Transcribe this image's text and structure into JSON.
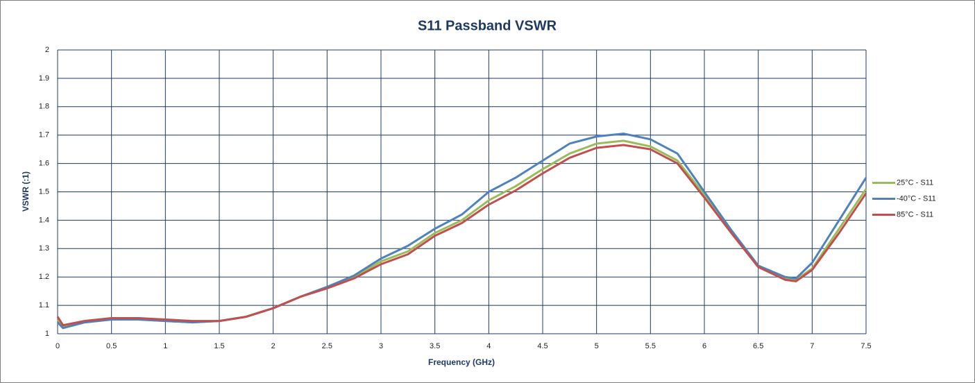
{
  "chart_data": {
    "type": "line",
    "title": "S11 Passband VSWR",
    "x_label": "Frequency (GHz)",
    "y_label": "VSWR (:1)",
    "x": [
      0,
      0.05,
      0.25,
      0.5,
      0.75,
      1,
      1.25,
      1.5,
      1.75,
      2,
      2.25,
      2.5,
      2.75,
      3,
      3.25,
      3.5,
      3.75,
      4,
      4.25,
      4.5,
      4.75,
      5,
      5.25,
      5.5,
      5.75,
      6,
      6.25,
      6.5,
      6.75,
      6.85,
      7,
      7.25,
      7.5
    ],
    "series": [
      {
        "name": "25°C - S11",
        "color": "#9bbb59",
        "values": [
          1.05,
          1.025,
          1.04,
          1.05,
          1.05,
          1.045,
          1.04,
          1.045,
          1.06,
          1.09,
          1.13,
          1.165,
          1.2,
          1.255,
          1.29,
          1.355,
          1.4,
          1.47,
          1.52,
          1.58,
          1.635,
          1.67,
          1.68,
          1.66,
          1.61,
          1.49,
          1.36,
          1.24,
          1.195,
          1.19,
          1.23,
          1.37,
          1.51
        ]
      },
      {
        "name": "-40°C - S11",
        "color": "#4f81bd",
        "values": [
          1.04,
          1.02,
          1.04,
          1.05,
          1.05,
          1.045,
          1.04,
          1.045,
          1.06,
          1.09,
          1.13,
          1.165,
          1.205,
          1.265,
          1.31,
          1.37,
          1.42,
          1.5,
          1.55,
          1.61,
          1.67,
          1.695,
          1.705,
          1.685,
          1.635,
          1.5,
          1.365,
          1.24,
          1.2,
          1.195,
          1.25,
          1.4,
          1.55
        ]
      },
      {
        "name": "85°C - S11",
        "color": "#c0504d",
        "values": [
          1.06,
          1.03,
          1.045,
          1.055,
          1.055,
          1.05,
          1.045,
          1.045,
          1.06,
          1.09,
          1.13,
          1.16,
          1.195,
          1.245,
          1.28,
          1.345,
          1.39,
          1.455,
          1.505,
          1.565,
          1.62,
          1.655,
          1.665,
          1.65,
          1.6,
          1.48,
          1.355,
          1.235,
          1.19,
          1.185,
          1.225,
          1.355,
          1.495
        ]
      }
    ],
    "xlim": [
      0,
      7.5
    ],
    "xticks": [
      0,
      0.5,
      1,
      1.5,
      2,
      2.5,
      3,
      3.5,
      4,
      4.5,
      5,
      5.5,
      6,
      6.5,
      7,
      7.5
    ],
    "ylim": [
      1,
      2
    ],
    "yticks": [
      1,
      1.1,
      1.2,
      1.3,
      1.4,
      1.5,
      1.6,
      1.7,
      1.8,
      1.9,
      2
    ],
    "grid": true,
    "legend": "right"
  }
}
